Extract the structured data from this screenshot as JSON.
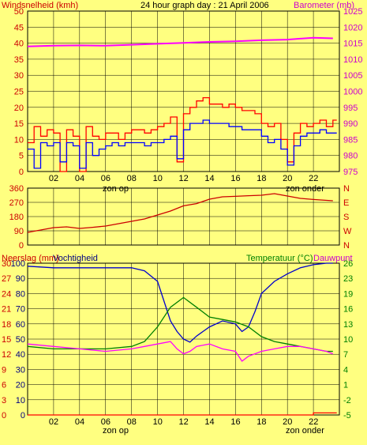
{
  "title": "24 hour graph day : 21 April 2006",
  "colors": {
    "background": "#ffff80",
    "wind": "#0000ff",
    "gust": "#ff0000",
    "baro": "#ff00ff",
    "dir": "#cc0000",
    "hum": "#0000cc",
    "temp": "#008000",
    "dew": "#ff00ff",
    "rain": "#ff0000",
    "left_label": "#cc0000",
    "right_label": "#cc00cc",
    "temp_label": "#008000"
  },
  "chart_data": [
    {
      "type": "line",
      "ylabel": "Windsnelheid (kmh)",
      "y2label": "Barometer (mb)",
      "xticks": [
        "02",
        "04",
        "06",
        "08",
        "10",
        "12",
        "14",
        "16",
        "18",
        "20",
        "22"
      ],
      "sun_labels": [
        "zon op",
        "zon onder"
      ],
      "ylim": [
        0,
        50
      ],
      "yticks": [
        0,
        5,
        10,
        15,
        20,
        25,
        30,
        35,
        40,
        45,
        50
      ],
      "y2lim": [
        975,
        1025
      ],
      "y2ticks": [
        975,
        980,
        985,
        990,
        995,
        1000,
        1005,
        1010,
        1015,
        1020,
        1025
      ],
      "series": [
        {
          "key": "gust",
          "axis": "left",
          "step": true,
          "x": [
            0,
            0.5,
            1,
            1.5,
            2,
            2.5,
            3,
            3.5,
            4,
            4.5,
            5,
            5.5,
            6,
            6.5,
            7,
            7.5,
            8,
            8.5,
            9,
            9.5,
            10,
            10.5,
            11,
            11.5,
            12,
            12.5,
            13,
            13.5,
            14,
            14.5,
            15,
            15.5,
            16,
            16.5,
            17,
            17.5,
            18,
            18.5,
            19,
            19.5,
            20,
            20.5,
            21,
            21.5,
            22,
            22.5,
            23,
            23.5
          ],
          "y": [
            9,
            14,
            11,
            13,
            12,
            0,
            13,
            11,
            0,
            14,
            11,
            10,
            12,
            12,
            10,
            12,
            13,
            13,
            12,
            13,
            14,
            15,
            17,
            3,
            18,
            20,
            22,
            23,
            21,
            21,
            20,
            21,
            20,
            19,
            19,
            18,
            15,
            14,
            15,
            10,
            3,
            12,
            15,
            14,
            15,
            16,
            14,
            16
          ]
        },
        {
          "key": "wind",
          "axis": "left",
          "step": true,
          "x": [
            0,
            0.5,
            1,
            1.5,
            2,
            2.5,
            3,
            3.5,
            4,
            4.5,
            5,
            5.5,
            6,
            6.5,
            7,
            7.5,
            8,
            8.5,
            9,
            9.5,
            10,
            10.5,
            11,
            11.5,
            12,
            12.5,
            13,
            13.5,
            14,
            14.5,
            15,
            15.5,
            16,
            16.5,
            17,
            17.5,
            18,
            18.5,
            19,
            19.5,
            20,
            20.5,
            21,
            21.5,
            22,
            22.5,
            23,
            23.5
          ],
          "y": [
            7,
            1,
            9,
            8,
            9,
            3,
            9,
            8,
            1,
            9,
            5,
            7,
            8,
            9,
            8,
            9,
            9,
            9,
            8,
            9,
            9,
            10,
            11,
            4,
            13,
            15,
            15,
            16,
            15,
            15,
            15,
            14,
            14,
            13,
            13,
            13,
            11,
            9,
            10,
            7,
            2,
            8,
            11,
            12,
            12,
            13,
            12,
            12
          ]
        },
        {
          "key": "baro",
          "axis": "right",
          "step": false,
          "x": [
            0,
            2,
            4,
            6,
            8,
            10,
            12,
            14,
            16,
            18,
            20,
            22,
            23.5
          ],
          "y": [
            1014,
            1014.2,
            1014.3,
            1014.2,
            1014.5,
            1014.8,
            1015.1,
            1015.4,
            1015.6,
            1015.9,
            1016.1,
            1016.7,
            1016.5
          ]
        }
      ]
    },
    {
      "type": "line",
      "ylabel": "",
      "ylim": [
        0,
        360
      ],
      "yticks": [
        0,
        90,
        180,
        270,
        360
      ],
      "y2ticks": [
        "N",
        "W",
        "S",
        "E",
        "N"
      ],
      "series": [
        {
          "key": "dir",
          "axis": "left",
          "step": false,
          "x": [
            0,
            1,
            2,
            3,
            4,
            5,
            6,
            7,
            8,
            9,
            10,
            11,
            12,
            13,
            14,
            15,
            16,
            17,
            18,
            19,
            20,
            21,
            22,
            23.5
          ],
          "y": [
            80,
            95,
            110,
            115,
            105,
            112,
            120,
            135,
            150,
            165,
            190,
            215,
            248,
            262,
            290,
            305,
            308,
            312,
            315,
            325,
            310,
            295,
            288,
            280
          ]
        }
      ]
    },
    {
      "type": "line",
      "ylabel": "Neerslag (mm)",
      "ylabel_b": "Vochtigheid",
      "y2label": "Temperatuur (°C)",
      "y2label_b": "Dauwpunt",
      "xticks": [
        "02",
        "04",
        "06",
        "08",
        "10",
        "12",
        "14",
        "16",
        "18",
        "20",
        "22"
      ],
      "sun_labels": [
        "zon op",
        "zon onder"
      ],
      "rain_ticks": [
        0,
        3,
        6,
        9,
        12,
        15,
        18,
        21,
        24,
        27,
        30
      ],
      "hum_ticks": [
        0,
        10,
        20,
        30,
        40,
        50,
        60,
        70,
        80,
        90,
        100
      ],
      "ylim": [
        0,
        30
      ],
      "y2lim": [
        -5,
        26
      ],
      "y2ticks": [
        -5,
        -2,
        1,
        4,
        7,
        10,
        13,
        16,
        19,
        23,
        26
      ],
      "series": [
        {
          "key": "hum",
          "axis": "hum",
          "step": false,
          "x": [
            0,
            2,
            4,
            6,
            8,
            9,
            10,
            10.5,
            11,
            11.5,
            12,
            12.5,
            13,
            13.5,
            14,
            15,
            16,
            16.5,
            17,
            17.5,
            18,
            19,
            20,
            21,
            22,
            23,
            23.5
          ],
          "y": [
            98,
            97,
            97,
            97,
            97,
            95,
            88,
            75,
            62,
            55,
            50,
            48,
            52,
            55,
            58,
            62,
            60,
            55,
            58,
            68,
            80,
            88,
            93,
            97,
            99,
            100,
            100
          ]
        },
        {
          "key": "temp",
          "axis": "temp",
          "step": false,
          "x": [
            0,
            2,
            4,
            6,
            8,
            9,
            10,
            11,
            12,
            13,
            14,
            15,
            16,
            17,
            18,
            19,
            20,
            21,
            22,
            23,
            23.5
          ],
          "y": [
            9,
            8.5,
            8.5,
            8.5,
            9,
            10,
            13,
            17,
            19,
            17,
            15,
            14.5,
            14,
            13,
            11,
            10,
            9.5,
            9,
            8.5,
            8,
            8
          ]
        },
        {
          "key": "dew",
          "axis": "temp",
          "step": false,
          "x": [
            0,
            2,
            4,
            6,
            8,
            9,
            10,
            11,
            11.5,
            12,
            12.5,
            13,
            14,
            15,
            16,
            16.5,
            17,
            18,
            19,
            20,
            21,
            22,
            23,
            23.5
          ],
          "y": [
            9.5,
            9,
            8.5,
            8,
            8.5,
            9,
            9.5,
            10,
            8.5,
            7.5,
            8,
            9,
            9.5,
            8.5,
            8,
            6,
            7,
            8,
            8.5,
            9,
            9,
            8.5,
            8,
            7.5
          ]
        },
        {
          "key": "rain",
          "axis": "rain",
          "step": true,
          "x": [
            0,
            21.5,
            22,
            23.5
          ],
          "y": [
            0,
            0,
            0.4,
            0.4
          ]
        }
      ]
    }
  ]
}
